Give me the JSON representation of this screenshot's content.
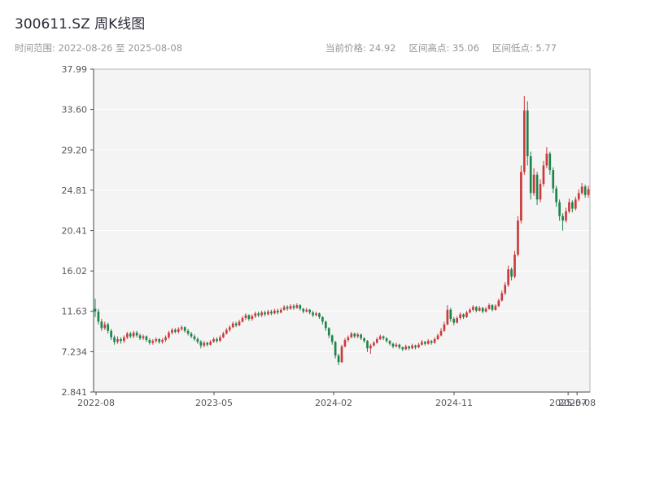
{
  "header": {
    "title": "300611.SZ 周K线图"
  },
  "info": {
    "range_label": "时间范围: 2022-08-26 至 2025-08-08",
    "price_label": "当前价格: 24.92",
    "high_label": "区间高点: 35.06",
    "low_label": "区间低点: 5.77"
  },
  "chart_data": {
    "type": "candlestick",
    "symbol": "300611.SZ",
    "period": "weekly",
    "title": "300611.SZ 周K线图",
    "start_date": "2022-08-26",
    "end_date": "2025-08-08",
    "current_price": 24.92,
    "range_high": 35.06,
    "range_low": 5.77,
    "ylim": [
      2.841,
      37.99
    ],
    "grid": true,
    "y_ticks": [
      "37.99",
      "33.60",
      "29.20",
      "24.81",
      "20.41",
      "16.02",
      "11.63",
      "7.234",
      "2.841"
    ],
    "x_ticks": [
      {
        "label": "2022-08",
        "pos": 0.005
      },
      {
        "label": "2023-05",
        "pos": 0.2426
      },
      {
        "label": "2024-02",
        "pos": 0.4836
      },
      {
        "label": "2024-11",
        "pos": 0.7262
      },
      {
        "label": "2025-07",
        "pos": 0.956
      },
      {
        "label": "2025-08",
        "pos": 0.974
      }
    ],
    "colors": {
      "up": "#cc3b3b",
      "down": "#1e8449",
      "plot_bg": "#f4f4f5",
      "grid_line": "#ffffff",
      "spine": "#4a4a50",
      "border": "#b6b6bc",
      "tick_text": "#55555e"
    },
    "ohlc_fields": [
      "open",
      "high",
      "low",
      "close"
    ],
    "ohlc": [
      [
        11.9,
        13.0,
        11.0,
        11.6
      ],
      [
        11.6,
        11.9,
        10.2,
        10.5
      ],
      [
        10.5,
        10.8,
        9.5,
        9.8
      ],
      [
        9.8,
        10.5,
        9.6,
        10.2
      ],
      [
        10.2,
        10.4,
        9.2,
        9.5
      ],
      [
        9.5,
        9.7,
        8.5,
        8.8
      ],
      [
        8.8,
        9.0,
        8.0,
        8.3
      ],
      [
        8.3,
        8.9,
        8.1,
        8.6
      ],
      [
        8.6,
        8.8,
        8.1,
        8.4
      ],
      [
        8.4,
        9.0,
        8.2,
        8.8
      ],
      [
        8.8,
        9.4,
        8.6,
        9.2
      ],
      [
        9.2,
        9.4,
        8.7,
        8.9
      ],
      [
        8.9,
        9.5,
        8.7,
        9.3
      ],
      [
        9.3,
        9.5,
        8.8,
        9.0
      ],
      [
        9.0,
        9.2,
        8.5,
        8.7
      ],
      [
        8.7,
        9.1,
        8.5,
        8.9
      ],
      [
        8.9,
        9.0,
        8.3,
        8.5
      ],
      [
        8.5,
        8.7,
        8.0,
        8.2
      ],
      [
        8.2,
        8.6,
        8.0,
        8.4
      ],
      [
        8.4,
        8.8,
        8.2,
        8.6
      ],
      [
        8.6,
        8.7,
        8.1,
        8.3
      ],
      [
        8.3,
        8.7,
        8.1,
        8.5
      ],
      [
        8.5,
        9.0,
        8.3,
        8.8
      ],
      [
        8.8,
        9.5,
        8.6,
        9.3
      ],
      [
        9.3,
        9.8,
        9.1,
        9.6
      ],
      [
        9.6,
        9.8,
        9.2,
        9.4
      ],
      [
        9.4,
        9.9,
        9.2,
        9.7
      ],
      [
        9.7,
        10.1,
        9.5,
        9.9
      ],
      [
        9.9,
        10.0,
        9.3,
        9.5
      ],
      [
        9.5,
        9.7,
        9.0,
        9.2
      ],
      [
        9.2,
        9.4,
        8.7,
        8.9
      ],
      [
        8.9,
        9.1,
        8.4,
        8.6
      ],
      [
        8.6,
        8.8,
        8.1,
        8.3
      ],
      [
        8.3,
        8.5,
        7.6,
        7.9
      ],
      [
        7.9,
        8.4,
        7.7,
        8.2
      ],
      [
        8.2,
        8.3,
        7.8,
        8.0
      ],
      [
        8.0,
        8.5,
        7.9,
        8.3
      ],
      [
        8.3,
        8.8,
        8.2,
        8.6
      ],
      [
        8.6,
        8.8,
        8.2,
        8.4
      ],
      [
        8.4,
        9.0,
        8.3,
        8.8
      ],
      [
        8.8,
        9.4,
        8.7,
        9.2
      ],
      [
        9.2,
        9.8,
        9.1,
        9.6
      ],
      [
        9.6,
        10.1,
        9.4,
        9.9
      ],
      [
        9.9,
        10.5,
        9.8,
        10.3
      ],
      [
        10.3,
        10.5,
        9.9,
        10.1
      ],
      [
        10.1,
        10.7,
        10.0,
        10.5
      ],
      [
        10.5,
        11.1,
        10.4,
        10.9
      ],
      [
        10.9,
        11.4,
        10.7,
        11.2
      ],
      [
        11.2,
        11.3,
        10.6,
        10.8
      ],
      [
        10.8,
        11.3,
        10.6,
        11.1
      ],
      [
        11.1,
        11.6,
        10.9,
        11.4
      ],
      [
        11.4,
        11.6,
        11.0,
        11.2
      ],
      [
        11.2,
        11.7,
        11.0,
        11.5
      ],
      [
        11.5,
        11.7,
        11.1,
        11.3
      ],
      [
        11.3,
        11.8,
        11.2,
        11.6
      ],
      [
        11.6,
        11.8,
        11.2,
        11.4
      ],
      [
        11.4,
        11.9,
        11.3,
        11.7
      ],
      [
        11.7,
        11.9,
        11.3,
        11.5
      ],
      [
        11.5,
        12.0,
        11.4,
        11.8
      ],
      [
        11.8,
        12.3,
        11.7,
        12.1
      ],
      [
        12.1,
        12.3,
        11.7,
        11.9
      ],
      [
        11.9,
        12.4,
        11.8,
        12.2
      ],
      [
        12.2,
        12.4,
        11.8,
        12.0
      ],
      [
        12.0,
        12.5,
        11.9,
        12.3
      ],
      [
        12.3,
        12.4,
        11.7,
        11.9
      ],
      [
        11.9,
        12.0,
        11.4,
        11.6
      ],
      [
        11.6,
        12.0,
        11.5,
        11.8
      ],
      [
        11.8,
        11.9,
        11.3,
        11.5
      ],
      [
        11.5,
        11.7,
        11.0,
        11.2
      ],
      [
        11.2,
        11.6,
        11.1,
        11.4
      ],
      [
        11.4,
        11.5,
        10.8,
        11.0
      ],
      [
        11.0,
        11.1,
        10.2,
        10.5
      ],
      [
        10.5,
        10.6,
        9.5,
        9.8
      ],
      [
        9.8,
        9.9,
        8.7,
        9.0
      ],
      [
        9.0,
        9.1,
        8.0,
        8.3
      ],
      [
        8.3,
        8.4,
        6.5,
        6.8
      ],
      [
        6.8,
        7.0,
        5.77,
        6.1
      ],
      [
        6.1,
        8.0,
        6.0,
        7.8
      ],
      [
        7.8,
        8.7,
        7.7,
        8.5
      ],
      [
        8.5,
        9.0,
        8.3,
        8.8
      ],
      [
        8.8,
        9.4,
        8.7,
        9.2
      ],
      [
        9.2,
        9.3,
        8.7,
        8.9
      ],
      [
        8.9,
        9.3,
        8.7,
        9.1
      ],
      [
        9.1,
        9.2,
        8.5,
        8.7
      ],
      [
        8.7,
        8.8,
        8.2,
        8.4
      ],
      [
        8.4,
        8.5,
        7.2,
        7.6
      ],
      [
        7.6,
        8.1,
        7.0,
        7.9
      ],
      [
        7.9,
        8.4,
        7.8,
        8.2
      ],
      [
        8.2,
        8.8,
        8.1,
        8.6
      ],
      [
        8.6,
        9.1,
        8.5,
        8.9
      ],
      [
        8.9,
        9.0,
        8.5,
        8.7
      ],
      [
        8.7,
        8.8,
        8.2,
        8.4
      ],
      [
        8.4,
        8.5,
        7.9,
        8.1
      ],
      [
        8.1,
        8.2,
        7.6,
        7.8
      ],
      [
        7.8,
        8.2,
        7.7,
        8.0
      ],
      [
        8.0,
        8.1,
        7.5,
        7.7
      ],
      [
        7.7,
        7.8,
        7.3,
        7.5
      ],
      [
        7.5,
        8.0,
        7.4,
        7.8
      ],
      [
        7.8,
        7.9,
        7.4,
        7.6
      ],
      [
        7.6,
        8.1,
        7.5,
        7.9
      ],
      [
        7.9,
        8.0,
        7.5,
        7.7
      ],
      [
        7.7,
        8.2,
        7.6,
        8.0
      ],
      [
        8.0,
        8.5,
        7.9,
        8.3
      ],
      [
        8.3,
        8.4,
        7.9,
        8.1
      ],
      [
        8.1,
        8.6,
        8.0,
        8.4
      ],
      [
        8.4,
        8.5,
        8.0,
        8.2
      ],
      [
        8.2,
        8.8,
        8.1,
        8.6
      ],
      [
        8.6,
        9.2,
        8.5,
        9.0
      ],
      [
        9.0,
        9.8,
        8.9,
        9.5
      ],
      [
        9.5,
        10.5,
        9.4,
        10.2
      ],
      [
        10.2,
        12.3,
        10.1,
        11.8
      ],
      [
        11.8,
        12.0,
        10.5,
        10.8
      ],
      [
        10.8,
        11.0,
        10.1,
        10.4
      ],
      [
        10.4,
        11.1,
        10.3,
        10.9
      ],
      [
        10.9,
        11.5,
        10.7,
        11.3
      ],
      [
        11.3,
        11.4,
        10.8,
        11.0
      ],
      [
        11.0,
        11.7,
        10.9,
        11.5
      ],
      [
        11.5,
        12.0,
        11.4,
        11.8
      ],
      [
        11.8,
        12.3,
        11.6,
        12.1
      ],
      [
        12.1,
        12.2,
        11.5,
        11.7
      ],
      [
        11.7,
        12.2,
        11.6,
        12.0
      ],
      [
        12.0,
        12.1,
        11.4,
        11.6
      ],
      [
        11.6,
        12.1,
        11.5,
        11.9
      ],
      [
        11.9,
        12.5,
        11.8,
        12.3
      ],
      [
        12.3,
        12.4,
        11.6,
        11.8
      ],
      [
        11.8,
        12.4,
        11.7,
        12.2
      ],
      [
        12.2,
        13.0,
        12.1,
        12.8
      ],
      [
        12.8,
        13.9,
        12.7,
        13.6
      ],
      [
        13.6,
        14.8,
        13.4,
        14.5
      ],
      [
        14.5,
        16.6,
        14.3,
        16.2
      ],
      [
        16.2,
        16.4,
        15.0,
        15.4
      ],
      [
        15.4,
        18.2,
        15.2,
        17.8
      ],
      [
        17.8,
        22.0,
        17.6,
        21.5
      ],
      [
        21.5,
        27.5,
        21.2,
        26.8
      ],
      [
        26.8,
        35.06,
        26.5,
        33.5
      ],
      [
        33.5,
        34.5,
        27.5,
        28.5
      ],
      [
        28.5,
        29.0,
        23.8,
        24.5
      ],
      [
        24.5,
        27.2,
        24.2,
        26.5
      ],
      [
        26.5,
        26.8,
        23.2,
        23.8
      ],
      [
        23.8,
        26.0,
        23.5,
        25.5
      ],
      [
        25.5,
        28.0,
        25.2,
        27.5
      ],
      [
        27.5,
        29.5,
        27.2,
        28.8
      ],
      [
        28.8,
        29.0,
        26.5,
        27.0
      ],
      [
        27.0,
        27.3,
        24.5,
        25.0
      ],
      [
        25.0,
        25.3,
        23.0,
        23.5
      ],
      [
        23.5,
        23.8,
        21.5,
        22.0
      ],
      [
        22.0,
        22.3,
        20.4,
        21.5
      ],
      [
        21.5,
        22.9,
        21.3,
        22.5
      ],
      [
        22.5,
        23.9,
        22.3,
        23.5
      ],
      [
        23.5,
        23.7,
        22.4,
        22.8
      ],
      [
        22.8,
        24.1,
        22.6,
        23.8
      ],
      [
        23.8,
        24.9,
        23.6,
        24.5
      ],
      [
        24.5,
        25.6,
        24.3,
        25.2
      ],
      [
        25.2,
        25.4,
        24.0,
        24.3
      ],
      [
        24.3,
        25.3,
        24.0,
        24.92
      ]
    ]
  }
}
